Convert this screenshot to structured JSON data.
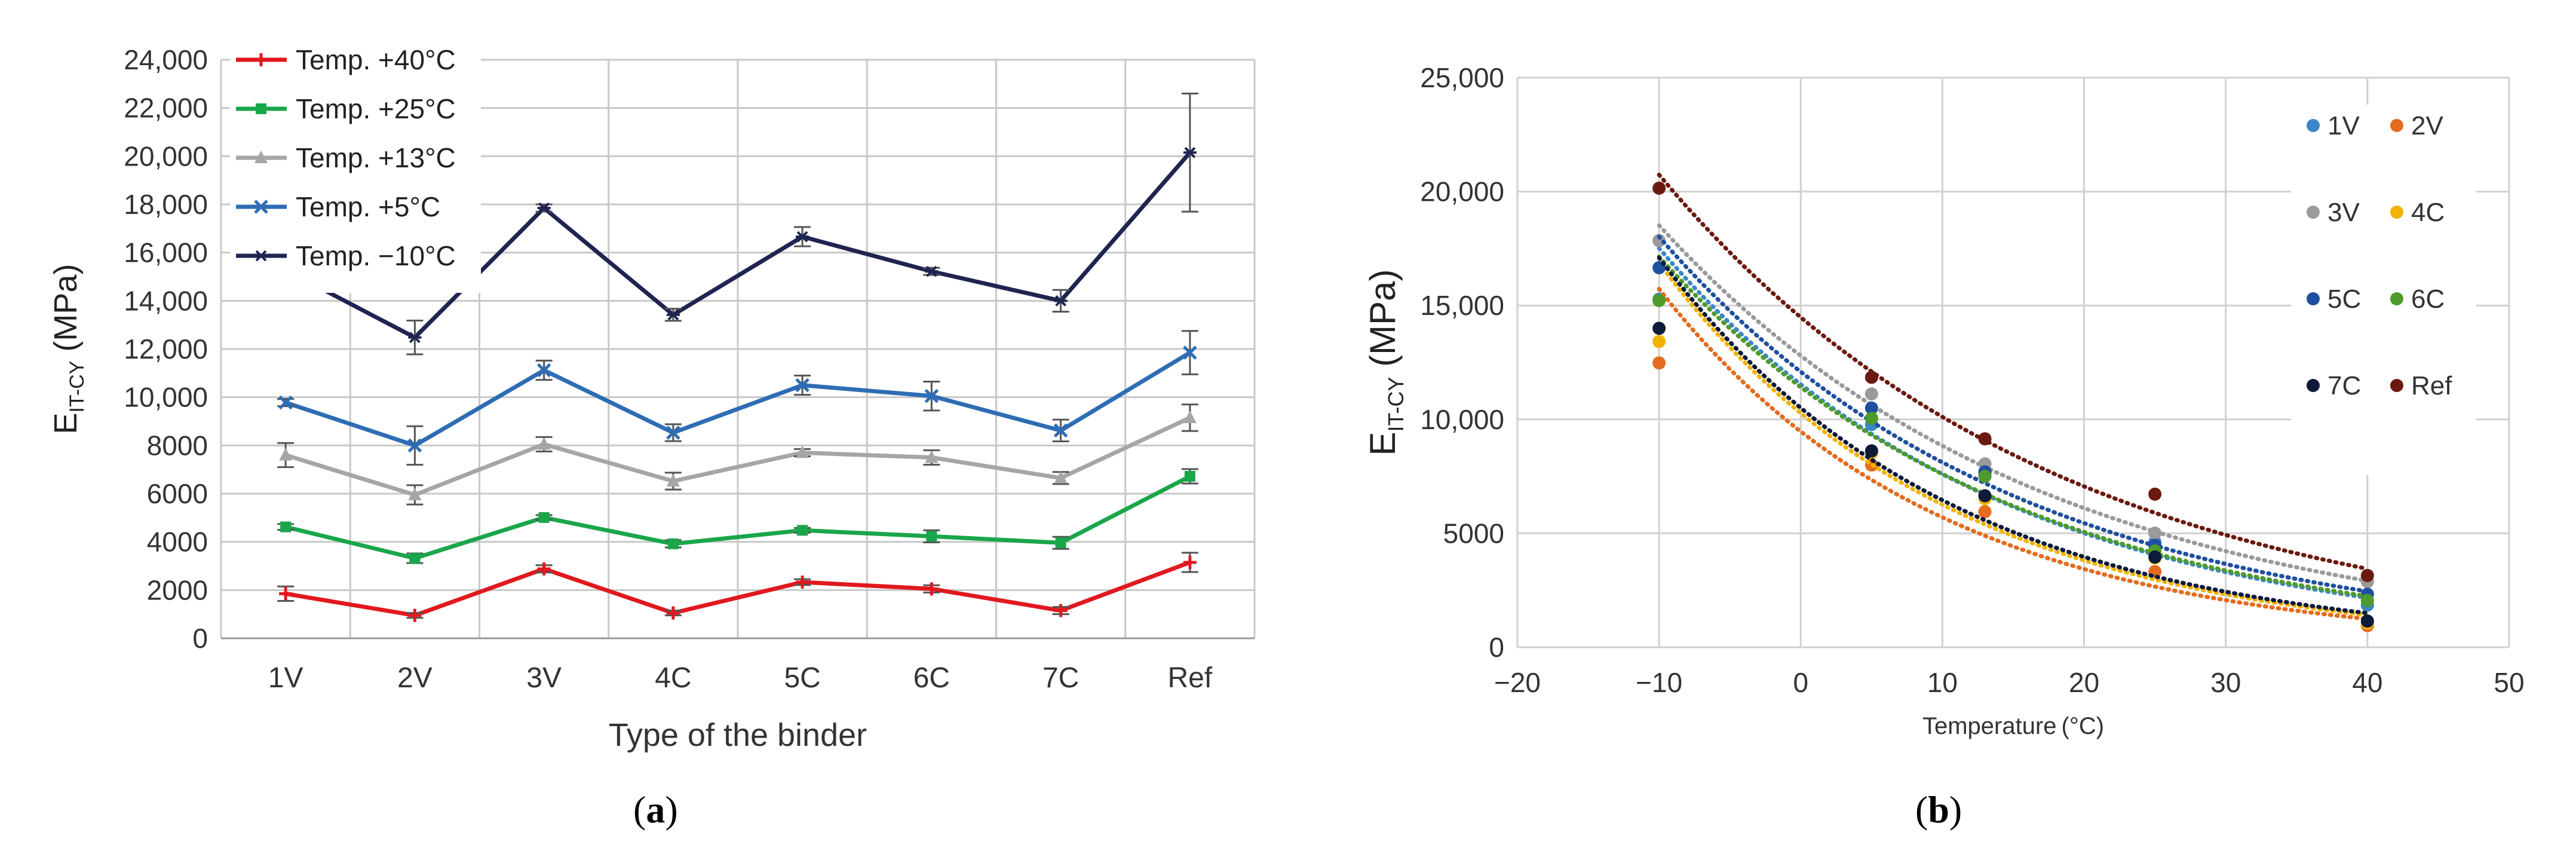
{
  "chart_data": [
    {
      "type": "line",
      "panel_label": "a",
      "xlabel": "Type of the binder",
      "ylabel_main": "E",
      "ylabel_sub": "IT-CY",
      "ylabel_unit": "(MPa)",
      "categories": [
        "1V",
        "2V",
        "3V",
        "4C",
        "5C",
        "6C",
        "7C",
        "Ref"
      ],
      "ylim": [
        0,
        24000
      ],
      "yticks": [
        {
          "v": 0,
          "label": "0"
        },
        {
          "v": 2000,
          "label": "2000"
        },
        {
          "v": 4000,
          "label": "4000"
        },
        {
          "v": 6000,
          "label": "6000"
        },
        {
          "v": 8000,
          "label": "8000"
        },
        {
          "v": 10000,
          "label": "10,000"
        },
        {
          "v": 12000,
          "label": "12,000"
        },
        {
          "v": 14000,
          "label": "14,000"
        },
        {
          "v": 16000,
          "label": "16,000"
        },
        {
          "v": 18000,
          "label": "18,000"
        },
        {
          "v": 20000,
          "label": "20,000"
        },
        {
          "v": 22000,
          "label": "22,000"
        },
        {
          "v": 24000,
          "label": "24,000"
        }
      ],
      "grid": true,
      "legend_position": "top-left",
      "series": [
        {
          "name": "Temp. +40°C",
          "color": "#e0191f",
          "marker": "plus",
          "values": [
            1850,
            950,
            2880,
            1050,
            2330,
            2050,
            1150,
            3150
          ],
          "errors": [
            300,
            100,
            150,
            100,
            120,
            150,
            150,
            400
          ]
        },
        {
          "name": "Temp. +25°C",
          "color": "#1aa64a",
          "marker": "square",
          "values": [
            4620,
            3320,
            5010,
            3920,
            4480,
            4230,
            3960,
            6720
          ],
          "errors": [
            120,
            200,
            100,
            150,
            100,
            250,
            250,
            300
          ]
        },
        {
          "name": "Temp. +13°C",
          "color": "#a6a6a6",
          "marker": "triangle",
          "values": [
            7600,
            5950,
            8050,
            6520,
            7700,
            7500,
            6650,
            9150
          ],
          "errors": [
            500,
            400,
            300,
            350,
            150,
            300,
            250,
            550
          ]
        },
        {
          "name": "Temp. +5°C",
          "color": "#2e6db4",
          "marker": "x",
          "values": [
            9780,
            8000,
            11120,
            8530,
            10500,
            10050,
            8620,
            11850
          ],
          "errors": [
            150,
            800,
            400,
            350,
            400,
            600,
            450,
            900
          ]
        },
        {
          "name": "Temp. −10°C",
          "color": "#1f2451",
          "marker": "star",
          "values": [
            15280,
            12480,
            17850,
            13420,
            16660,
            15220,
            14000,
            20150
          ],
          "errors": [
            250,
            700,
            150,
            250,
            400,
            150,
            450,
            2450
          ]
        }
      ]
    },
    {
      "type": "scatter",
      "panel_label": "b",
      "xlabel": "Temperature (°C)",
      "ylabel_main": "E",
      "ylabel_sub": "IT-CY",
      "ylabel_unit": "(MPa)",
      "xlim": [
        -20,
        50
      ],
      "ylim": [
        0,
        25000
      ],
      "xticks": [
        {
          "v": -20,
          "label": "−20"
        },
        {
          "v": -10,
          "label": "−10"
        },
        {
          "v": 0,
          "label": "0"
        },
        {
          "v": 10,
          "label": "10"
        },
        {
          "v": 20,
          "label": "20"
        },
        {
          "v": 30,
          "label": "30"
        },
        {
          "v": 40,
          "label": "40"
        },
        {
          "v": 50,
          "label": "50"
        }
      ],
      "yticks": [
        {
          "v": 0,
          "label": "0"
        },
        {
          "v": 5000,
          "label": "5000"
        },
        {
          "v": 10000,
          "label": "10,000"
        },
        {
          "v": 15000,
          "label": "15,000"
        },
        {
          "v": 20000,
          "label": "20,000"
        },
        {
          "v": 25000,
          "label": "25,000"
        }
      ],
      "grid": true,
      "legend_position": "right",
      "trendline": "dotted exponential",
      "x": [
        -10,
        5,
        13,
        25,
        40
      ],
      "series": [
        {
          "name": "1V",
          "color": "#3b87c8",
          "values": [
            15280,
            9780,
            7600,
            4620,
            1850
          ]
        },
        {
          "name": "2V",
          "color": "#e36c1e",
          "values": [
            12480,
            8000,
            5950,
            3320,
            950
          ]
        },
        {
          "name": "3V",
          "color": "#9a9a9a",
          "values": [
            17850,
            11120,
            8050,
            5010,
            2880
          ]
        },
        {
          "name": "4C",
          "color": "#f2b300",
          "values": [
            13420,
            8530,
            6520,
            3920,
            1050
          ]
        },
        {
          "name": "5C",
          "color": "#1f4fa0",
          "values": [
            16660,
            10500,
            7700,
            4480,
            2330
          ]
        },
        {
          "name": "6C",
          "color": "#4e9a2a",
          "values": [
            15220,
            10050,
            7500,
            4230,
            2050
          ]
        },
        {
          "name": "7C",
          "color": "#0d1a3a",
          "values": [
            14000,
            8620,
            6650,
            3960,
            1150
          ]
        },
        {
          "name": "Ref",
          "color": "#6b1a10",
          "values": [
            20150,
            11850,
            9150,
            6720,
            3150
          ]
        }
      ]
    }
  ]
}
